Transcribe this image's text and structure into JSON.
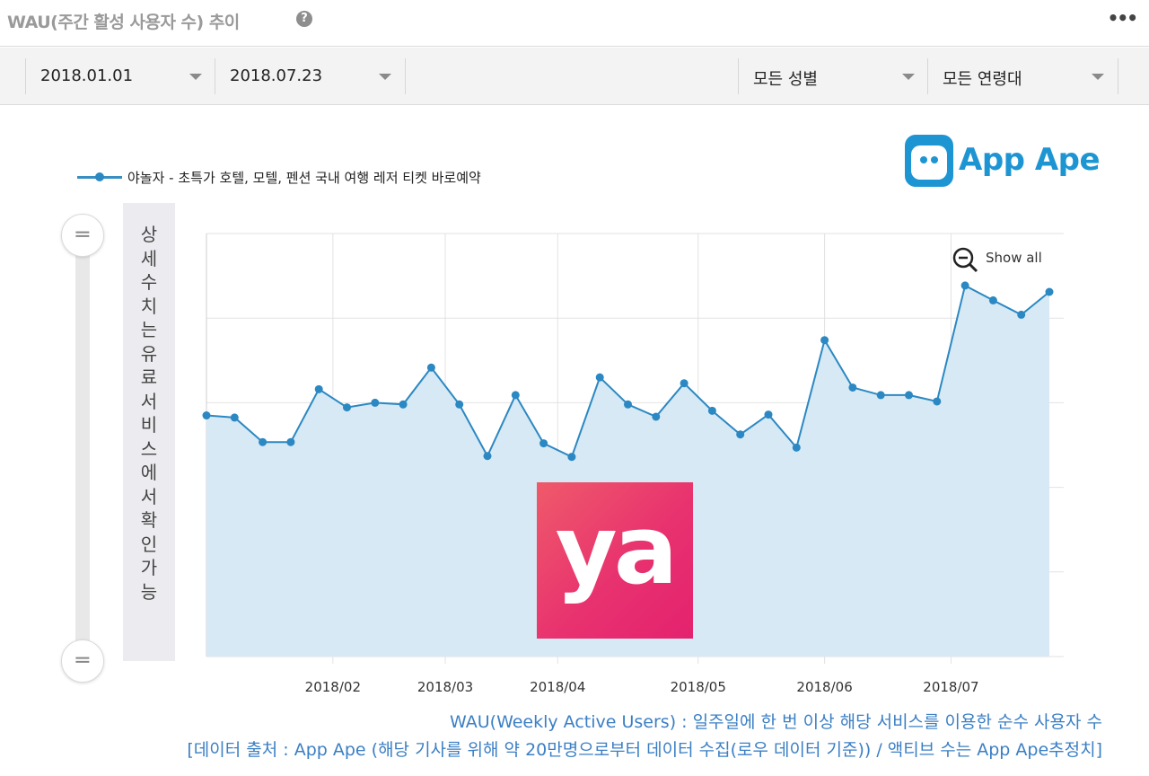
{
  "header": {
    "title": "WAU(주간 활성 사용자 수) 추이",
    "help_icon": "?",
    "menu_icon": "•••"
  },
  "filters": {
    "start_date": "2018.01.01",
    "end_date": "2018.07.23",
    "gender": "모든 성별",
    "age": "모든 연령대"
  },
  "side_panel": {
    "text": "상세수치는 유료서비스에서 확인가능",
    "handle_glyph": "═"
  },
  "brand": {
    "appape_text": "App Ape",
    "appape_color": "#1e95d3",
    "ya_text": "ya",
    "ya_color": "#e8326f"
  },
  "chart_controls": {
    "show_all_label": "Show all",
    "zoom_icon": "zoom-out-icon"
  },
  "chart_data": {
    "type": "area",
    "legend": "야놀자 - 초특가 호텔, 모텔, 펜션 국내 여행 레저 티켓 바로예약",
    "legend_placement": "top-left",
    "series_color": "#2b88c2",
    "fill_color": "#d6e9f4",
    "xlabel": "",
    "ylabel": "",
    "y_axis_labels_hidden": true,
    "grid": true,
    "x_ticks": [
      "2018/02",
      "2018/03",
      "2018/04",
      "2018/05",
      "2018/06",
      "2018/07"
    ],
    "ylim": [
      0,
      100
    ],
    "values": [
      57.0,
      56.5,
      50.7,
      50.7,
      63.2,
      58.9,
      60.0,
      59.6,
      68.3,
      59.6,
      47.4,
      61.8,
      50.4,
      47.2,
      66.0,
      59.6,
      56.7,
      64.6,
      58.1,
      52.5,
      57.2,
      49.4,
      74.8,
      63.6,
      61.8,
      61.8,
      60.3,
      87.7,
      84.2,
      80.8,
      86.2
    ]
  },
  "footnotes": {
    "line1": "WAU(Weekly Active Users) : 일주일에 한 번 이상 해당 서비스를 이용한 순수 사용자 수",
    "line2": "[데이터 출처 : App Ape (해당 기사를 위해 약 20만명으로부터 데이터 수집(로우 데이터 기준)) / 액티브 수는 App Ape추정치]"
  }
}
